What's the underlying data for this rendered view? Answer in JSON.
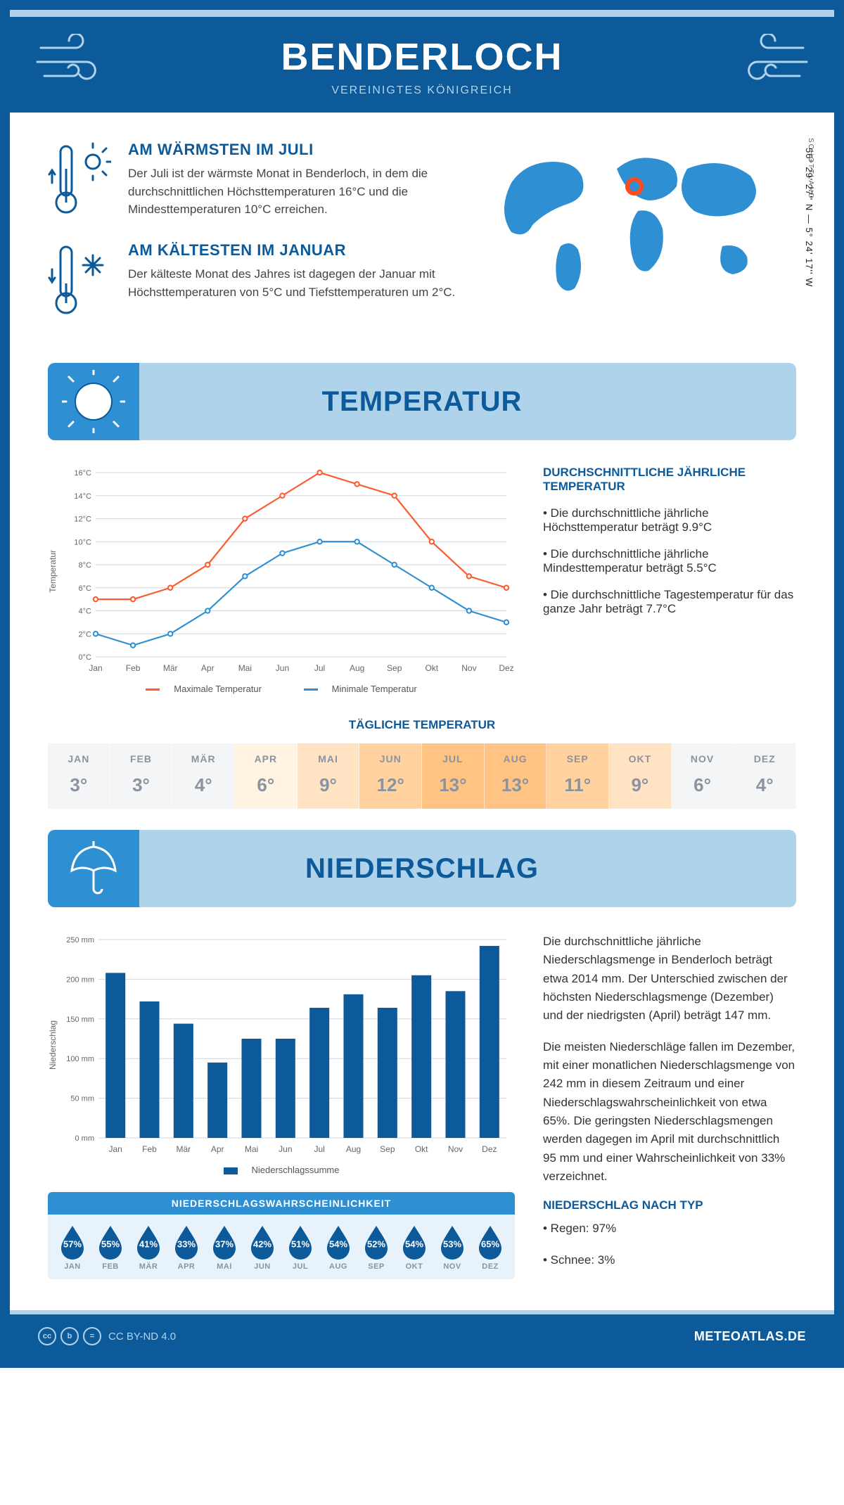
{
  "header": {
    "title": "BENDERLOCH",
    "subtitle": "VEREINIGTES KÖNIGREICH"
  },
  "location": {
    "coords": "56° 29' 27'' N — 5° 24' 17'' W",
    "region": "SCHOTTLAND",
    "marker_color": "#ff4b1f"
  },
  "warm": {
    "title": "AM WÄRMSTEN IM JULI",
    "text": "Der Juli ist der wärmste Monat in Benderloch, in dem die durchschnittlichen Höchsttemperaturen 16°C und die Mindesttemperaturen 10°C erreichen."
  },
  "cold": {
    "title": "AM KÄLTESTEN IM JANUAR",
    "text": "Der kälteste Monat des Jahres ist dagegen der Januar mit Höchsttemperaturen von 5°C und Tiefsttemperaturen um 2°C."
  },
  "sections": {
    "temperature": "TEMPERATUR",
    "precipitation": "NIEDERSCHLAG"
  },
  "temp_chart": {
    "ylabel": "Temperatur",
    "months": [
      "Jan",
      "Feb",
      "Mär",
      "Apr",
      "Mai",
      "Jun",
      "Jul",
      "Aug",
      "Sep",
      "Okt",
      "Nov",
      "Dez"
    ],
    "max_series": {
      "label": "Maximale Temperatur",
      "color": "#ff5a2c",
      "values": [
        5,
        5,
        6,
        8,
        12,
        14,
        16,
        15,
        14,
        10,
        7,
        6
      ]
    },
    "min_series": {
      "label": "Minimale Temperatur",
      "color": "#2f8fd3",
      "values": [
        2,
        1,
        2,
        4,
        7,
        9,
        10,
        10,
        8,
        6,
        4,
        3
      ]
    },
    "ylim": [
      0,
      16
    ],
    "ytick_step": 2,
    "grid_color": "#d0d7de",
    "background": "#ffffff",
    "line_width": 2.2,
    "marker_radius": 3.2
  },
  "temp_text": {
    "heading": "DURCHSCHNITTLICHE JÄHRLICHE TEMPERATUR",
    "b1": "• Die durchschnittliche jährliche Höchsttemperatur beträgt 9.9°C",
    "b2": "• Die durchschnittliche jährliche Mindesttemperatur beträgt 5.5°C",
    "b3": "• Die durchschnittliche Tagestemperatur für das ganze Jahr beträgt 7.7°C"
  },
  "daily": {
    "title": "TÄGLICHE TEMPERATUR",
    "months": [
      "JAN",
      "FEB",
      "MÄR",
      "APR",
      "MAI",
      "JUN",
      "JUL",
      "AUG",
      "SEP",
      "OKT",
      "NOV",
      "DEZ"
    ],
    "values": [
      "3°",
      "3°",
      "4°",
      "6°",
      "9°",
      "12°",
      "13°",
      "13°",
      "11°",
      "9°",
      "6°",
      "4°"
    ],
    "colors": [
      "#f3f5f7",
      "#f3f5f7",
      "#f3f5f7",
      "#fff3e2",
      "#ffe3c2",
      "#ffd2a0",
      "#ffc383",
      "#ffc383",
      "#ffd2a0",
      "#ffe3c2",
      "#f3f5f7",
      "#f3f5f7"
    ]
  },
  "precip_chart": {
    "ylabel": "Niederschlag",
    "legend": "Niederschlagssumme",
    "months": [
      "Jan",
      "Feb",
      "Mär",
      "Apr",
      "Mai",
      "Jun",
      "Jul",
      "Aug",
      "Sep",
      "Okt",
      "Nov",
      "Dez"
    ],
    "values": [
      208,
      172,
      144,
      95,
      125,
      125,
      164,
      181,
      164,
      205,
      185,
      242
    ],
    "ylim": [
      0,
      250
    ],
    "ytick_step": 50,
    "bar_color": "#0d5a9a",
    "grid_color": "#d0d7de",
    "bar_width": 0.58
  },
  "precip_text": {
    "p1": "Die durchschnittliche jährliche Niederschlagsmenge in Benderloch beträgt etwa 2014 mm. Der Unterschied zwischen der höchsten Niederschlagsmenge (Dezember) und der niedrigsten (April) beträgt 147 mm.",
    "p2": "Die meisten Niederschläge fallen im Dezember, mit einer monatlichen Niederschlagsmenge von 242 mm in diesem Zeitraum und einer Niederschlagswahrscheinlichkeit von etwa 65%. Die geringsten Niederschlagsmengen werden dagegen im April mit durchschnittlich 95 mm und einer Wahrscheinlichkeit von 33% verzeichnet.",
    "type_head": "NIEDERSCHLAG NACH TYP",
    "type_b1": "• Regen: 97%",
    "type_b2": "• Schnee: 3%"
  },
  "prob": {
    "title": "NIEDERSCHLAGSWAHRSCHEINLICHKEIT",
    "months": [
      "JAN",
      "FEB",
      "MÄR",
      "APR",
      "MAI",
      "JUN",
      "JUL",
      "AUG",
      "SEP",
      "OKT",
      "NOV",
      "DEZ"
    ],
    "values": [
      "57%",
      "55%",
      "41%",
      "33%",
      "37%",
      "42%",
      "51%",
      "54%",
      "52%",
      "54%",
      "53%",
      "65%"
    ],
    "drop_color": "#0d5a9a"
  },
  "footer": {
    "license": "CC BY-ND 4.0",
    "site": "METEOATLAS.DE"
  },
  "palette": {
    "primary": "#0d5a9a",
    "accent": "#2f8fd3",
    "light": "#b0d3ec"
  }
}
